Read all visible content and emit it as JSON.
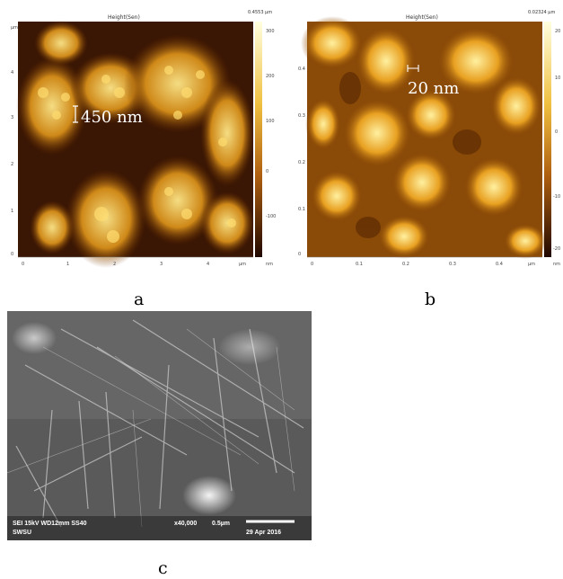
{
  "panel_a": {
    "title": "Height(Sen)",
    "top_right": "0.4553 µm",
    "scale_label": "450 nm",
    "x_ticks": [
      "0",
      "1",
      "2",
      "3",
      "4",
      "µm"
    ],
    "y_ticks": [
      "4",
      "3",
      "2",
      "1",
      "0",
      "µm"
    ],
    "colorbar_ticks": [
      "300",
      "200",
      "100",
      "0",
      "-100",
      "nm"
    ],
    "caption": "a"
  },
  "panel_b": {
    "title": "Height(Sen)",
    "top_right": "0.02324 µm",
    "scale_label": "20 nm",
    "x_ticks": [
      "0",
      "0.1",
      "0.2",
      "0.3",
      "0.4",
      "µm"
    ],
    "y_ticks": [
      "0.4",
      "0.3",
      "0.2",
      "0.1",
      "0"
    ],
    "colorbar_ticks": [
      "20",
      "10",
      "0",
      "-10",
      "-20",
      "nm"
    ],
    "caption": "b"
  },
  "panel_c": {
    "info_line1": "SEI   15kV   WD12mm   SS40",
    "magnification": "x40,000",
    "scale": "0.5µm",
    "info_line2": "SWSU",
    "date": "29 Apr 2016",
    "caption": "c"
  }
}
